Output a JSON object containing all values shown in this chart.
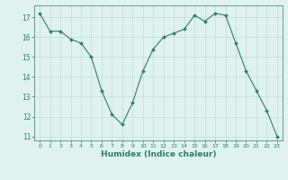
{
  "x": [
    0,
    1,
    2,
    3,
    4,
    5,
    6,
    7,
    8,
    9,
    10,
    11,
    12,
    13,
    14,
    15,
    16,
    17,
    18,
    19,
    20,
    21,
    22,
    23
  ],
  "y": [
    17.2,
    16.3,
    16.3,
    15.9,
    15.7,
    15.0,
    13.3,
    12.1,
    11.6,
    12.7,
    14.3,
    15.4,
    16.0,
    16.2,
    16.4,
    17.1,
    16.8,
    17.2,
    17.1,
    15.7,
    14.3,
    13.3,
    12.3,
    11.0
  ],
  "line_color": "#2e7d6e",
  "marker": "D",
  "marker_size": 2.0,
  "bg_color": "#dff2ee",
  "grid_color": "#c0ddd8",
  "xlabel": "Humidex (Indice chaleur)",
  "ylim": [
    10.8,
    17.6
  ],
  "xlim": [
    -0.5,
    23.5
  ],
  "yticks": [
    11,
    12,
    13,
    14,
    15,
    16,
    17
  ],
  "xticks": [
    0,
    1,
    2,
    3,
    4,
    5,
    6,
    7,
    8,
    9,
    10,
    11,
    12,
    13,
    14,
    15,
    16,
    17,
    18,
    19,
    20,
    21,
    22,
    23
  ],
  "tick_color": "#2e7d6e",
  "label_color": "#2e7d6e"
}
